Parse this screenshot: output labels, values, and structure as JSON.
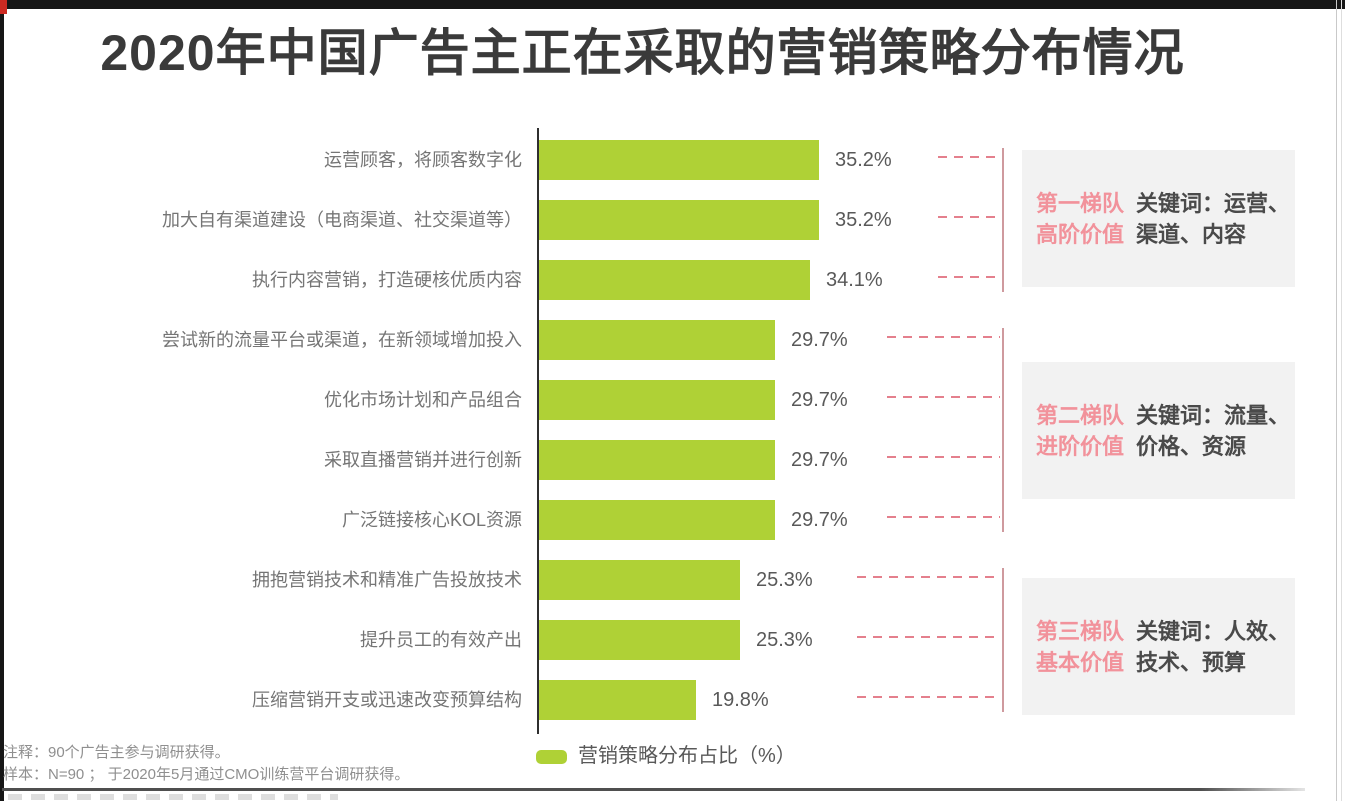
{
  "title": "2020年中国广告主正在采取的营销策略分布情况",
  "chart_data": {
    "type": "bar",
    "orientation": "horizontal",
    "title": "2020年中国广告主正在采取的营销策略分布情况",
    "categories": [
      "运营顾客，将顾客数字化",
      "加大自有渠道建设（电商渠道、社交渠道等）",
      "执行内容营销，打造硬核优质内容",
      "尝试新的流量平台或渠道，在新领域增加投入",
      "优化市场计划和产品组合",
      "采取直播营销并进行创新",
      "广泛链接核心KOL资源",
      "拥抱营销技术和精准广告投放技术",
      "提升员工的有效产出",
      "压缩营销开支或迅速改变预算结构"
    ],
    "values": [
      35.2,
      35.2,
      34.1,
      29.7,
      29.7,
      29.7,
      29.7,
      25.3,
      25.3,
      19.8
    ],
    "value_labels": [
      "35.2%",
      "35.2%",
      "34.1%",
      "29.7%",
      "29.7%",
      "29.7%",
      "29.7%",
      "25.3%",
      "25.3%",
      "19.8%"
    ],
    "legend": "营销策略分布占比（%）",
    "xlim": [
      0,
      40
    ],
    "grid": false,
    "legend_position": "bottom",
    "bar_color": "#afd136"
  },
  "tiers": [
    {
      "label_lines": [
        "第一梯队",
        "高阶价值"
      ],
      "keyword_lines": [
        "关键词：运营、",
        "渠道、内容"
      ],
      "rows": [
        0,
        2
      ]
    },
    {
      "label_lines": [
        "第二梯队",
        "进阶价值"
      ],
      "keyword_lines": [
        "关键词：流量、",
        "价格、资源"
      ],
      "rows": [
        3,
        6
      ]
    },
    {
      "label_lines": [
        "第三梯队",
        "基本价值"
      ],
      "keyword_lines": [
        "关键词：人效、",
        "技术、预算"
      ],
      "rows": [
        7,
        9
      ]
    }
  ],
  "legend": {
    "label": "营销策略分布占比（%）"
  },
  "notes": {
    "line1": "注释：90个广告主参与调研获得。",
    "line2": "样本：N=90 ； 于2020年5月通过CMO训练营平台调研获得。"
  },
  "colors": {
    "bar_green": "#afd136",
    "title_text": "#3a3a3a",
    "category_text": "#757575",
    "value_text": "#595959",
    "tier_pink": "#f2929b",
    "tier_keyword_text": "#4a4a4a",
    "tier_panel_bg": "#f2f2f2",
    "dash_pink": "#e4808d",
    "bracket_rose": "#cf9a9e",
    "note_text": "#8f8f8f"
  }
}
